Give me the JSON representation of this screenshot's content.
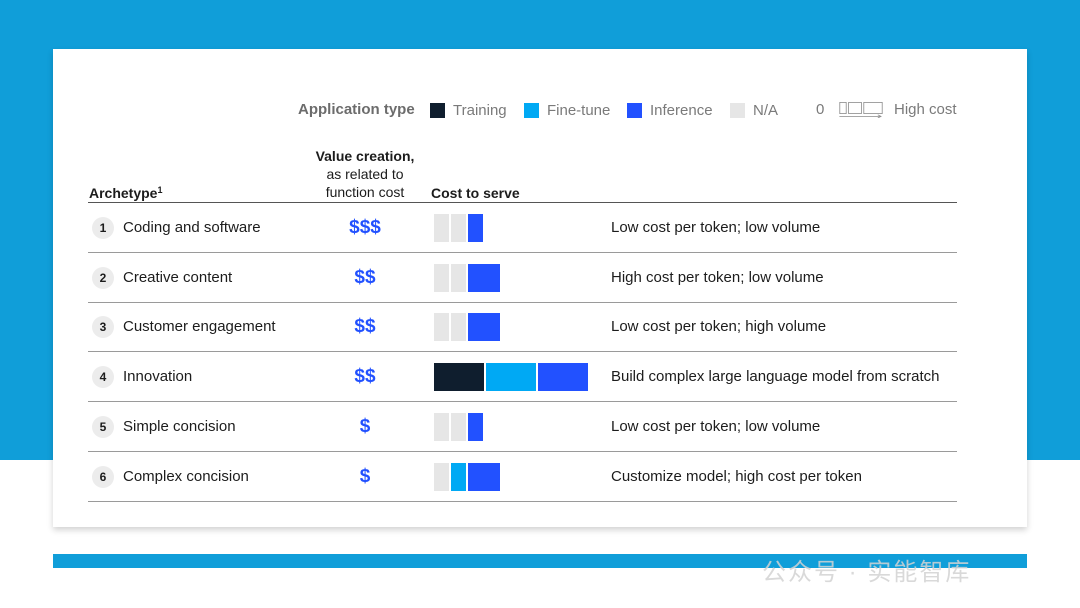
{
  "legend": {
    "title": "Application type",
    "items": [
      {
        "label": "Training",
        "color": "#0f1e2e"
      },
      {
        "label": "Fine-tune",
        "color": "#00a9f4"
      },
      {
        "label": "Inference",
        "color": "#2251ff"
      },
      {
        "label": "N/A",
        "color": "#e6e6e6"
      }
    ],
    "scale_low": "0",
    "scale_high": "High cost"
  },
  "headers": {
    "archetype": "Archetype",
    "archetype_note": "1",
    "value_bold": "Value creation,",
    "value_sub1": "as related to",
    "value_sub2": "function cost",
    "cost": "Cost to serve"
  },
  "chart_data": {
    "type": "table",
    "cost_scale_note": "segment units: 1 = small, 2 = medium, 3 = large",
    "rows": [
      {
        "num": "1",
        "archetype": "Coding and software",
        "value": "$$$",
        "cost": [
          {
            "type": "N/A",
            "size": 1
          },
          {
            "type": "N/A",
            "size": 1
          },
          {
            "type": "Inference",
            "size": 1
          }
        ],
        "description": "Low cost per token; low volume"
      },
      {
        "num": "2",
        "archetype": "Creative content",
        "value": "$$",
        "cost": [
          {
            "type": "N/A",
            "size": 1
          },
          {
            "type": "N/A",
            "size": 1
          },
          {
            "type": "Inference",
            "size": 2
          }
        ],
        "description": "High cost per token; low volume"
      },
      {
        "num": "3",
        "archetype": "Customer engagement",
        "value": "$$",
        "cost": [
          {
            "type": "N/A",
            "size": 1
          },
          {
            "type": "N/A",
            "size": 1
          },
          {
            "type": "Inference",
            "size": 2
          }
        ],
        "description": "Low cost per token; high volume"
      },
      {
        "num": "4",
        "archetype": "Innovation",
        "value": "$$",
        "cost": [
          {
            "type": "Training",
            "size": 3
          },
          {
            "type": "Fine-tune",
            "size": 3
          },
          {
            "type": "Inference",
            "size": 3
          }
        ],
        "description": "Build complex large language model from scratch"
      },
      {
        "num": "5",
        "archetype": "Simple concision",
        "value": "$",
        "cost": [
          {
            "type": "N/A",
            "size": 1
          },
          {
            "type": "N/A",
            "size": 1
          },
          {
            "type": "Inference",
            "size": 1
          }
        ],
        "description": "Low cost per token; low volume"
      },
      {
        "num": "6",
        "archetype": "Complex concision",
        "value": "$",
        "cost": [
          {
            "type": "N/A",
            "size": 1
          },
          {
            "type": "Fine-tune",
            "size": 1
          },
          {
            "type": "Inference",
            "size": 2
          }
        ],
        "description": "Customize model; high cost per token"
      }
    ]
  },
  "watermark": "公众号 · 实能智库"
}
